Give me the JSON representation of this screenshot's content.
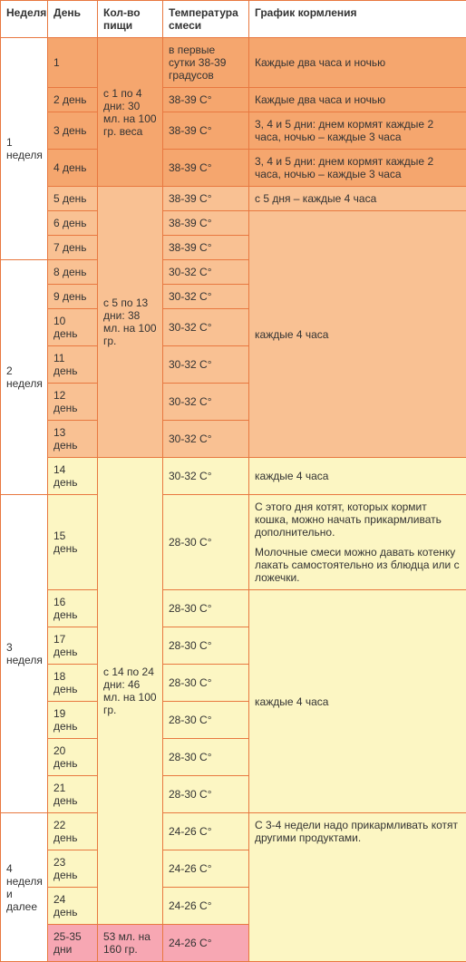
{
  "colors": {
    "border": "#e87840",
    "orange_dark": "#f5a66e",
    "orange_mid": "#f9c193",
    "orange_light": "#fcd9b8",
    "yellow": "#fcf6c3",
    "pink": "#f7a7b3",
    "white": "#ffffff"
  },
  "header": {
    "week": "Неделя",
    "day": "День",
    "food": "Кол-во пищи",
    "temp": "Температура смеси",
    "sched": "График кормления"
  },
  "weeks": {
    "w1": "1 неделя",
    "w2": "2 неделя",
    "w3": "3 неделя",
    "w4": "4 неделя и далее"
  },
  "food": {
    "f1": "с 1 по 4 дни: 30 мл. на 100 гр. веса",
    "f2": "с 5 по 13 дни: 38 мл. на 100 гр.",
    "f3": "с 14 по 24 дни: 46 мл. на 100 гр.",
    "f4": "53 мл. на 160 гр."
  },
  "temp": {
    "t1": "в первые сутки 38-39 градусов",
    "t38": "38-39 С°",
    "t30": "30-32 С°",
    "t28": "28-30 С°",
    "t24": "24-26 С°"
  },
  "sched": {
    "s1": "Каждые два часа и ночью",
    "s2": "Каждые два часа и ночью",
    "s3": "3, 4 и 5 дни: днем кормят каждые 2 часа, ночью – каждые 3 часа",
    "s5": "с 5 дня – каждые 4 часа",
    "s6": "каждые 4 часа",
    "s14": "каждые 4 часа",
    "s15a": "С этого дня котят, которых кормит кошка, можно начать прикармливать дополнительно.",
    "s15b": "Молочные смеси можно давать котенку лакать самостоятельно из блюдца или с ложечки.",
    "s16": "каждые 4 часа",
    "s22": "С 3-4 недели надо прикармливать котят другими продуктами."
  },
  "days": {
    "d1": "1",
    "d2": "2 день",
    "d3": "3 день",
    "d4": "4 день",
    "d5": "5 день",
    "d6": "6 день",
    "d7": "7 день",
    "d8": "8 день",
    "d9": "9 день",
    "d10": "10 день",
    "d11": "11 день",
    "d12": "12 день",
    "d13": "13 день",
    "d14": "14 день",
    "d15": "15 день",
    "d16": "16 день",
    "d17": "17 день",
    "d18": "18 день",
    "d19": "19 день",
    "d20": "20 день",
    "d21": "21 день",
    "d22": "22 день",
    "d23": "23 день",
    "d24": "24 день",
    "d25": "25-35 дни"
  }
}
